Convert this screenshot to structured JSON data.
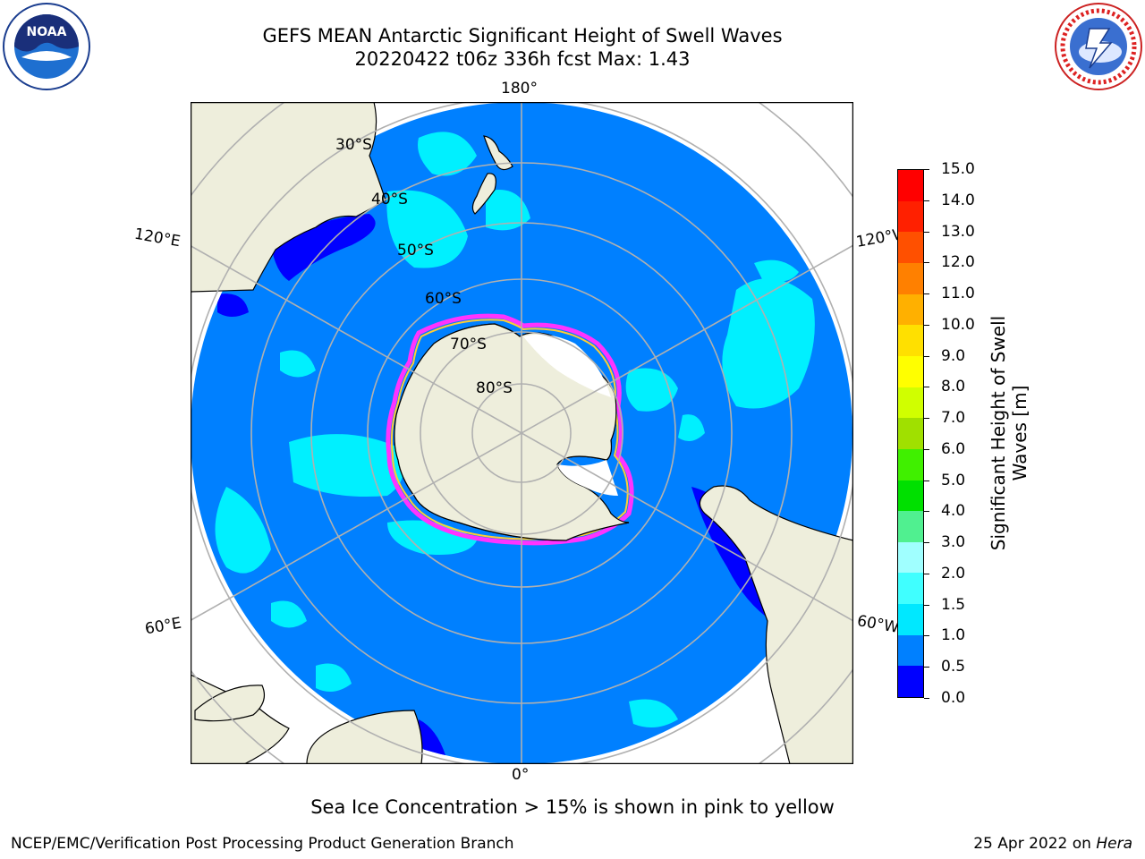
{
  "header": {
    "title_line1": "GEFS MEAN Antarctic Significant Height of Swell Waves",
    "title_line2": "20220422 t06z 336h fcst   Max: 1.43"
  },
  "logos": {
    "noaa": {
      "text": "NOAA",
      "ring_text": "NATIONAL OCEANIC AND ATMOSPHERIC ADMINISTRATION · U.S. DEPARTMENT OF COMMERCE"
    },
    "nws": {
      "ring_text": "NATIONAL WEATHER SERVICE"
    }
  },
  "map": {
    "projection": "south polar stereographic",
    "longitude_labels": {
      "top": "180°",
      "bottom": "0°",
      "upper_left": "120°E",
      "upper_right": "120°W",
      "lower_left": "60°E",
      "lower_right": "60°W"
    },
    "latitude_labels": [
      "30°S",
      "40°S",
      "50°S",
      "60°S",
      "70°S",
      "80°S"
    ],
    "colors": {
      "land": "#eeeedc",
      "ocean": "#0080ff",
      "grid": "#b0b0b0",
      "ice": "#ffffff",
      "ice_edge": [
        "#ff33ff",
        "#ffcc33"
      ]
    }
  },
  "colorbar": {
    "label": "Significant Height of Swell Waves [m]",
    "ticks": [
      "0.0",
      "0.5",
      "1.0",
      "1.5",
      "2.0",
      "3.0",
      "4.0",
      "5.0",
      "6.0",
      "7.0",
      "8.0",
      "9.0",
      "10.0",
      "11.0",
      "12.0",
      "13.0",
      "14.0",
      "15.0"
    ],
    "colors": [
      "#0000ff",
      "#0080ff",
      "#00e8ff",
      "#40ffff",
      "#a0ffff",
      "#50f090",
      "#00e000",
      "#40f000",
      "#a0e000",
      "#d0ff00",
      "#ffff00",
      "#ffe000",
      "#ffb000",
      "#ff8000",
      "#ff5000",
      "#ff2000",
      "#ff0000"
    ]
  },
  "note": "Sea Ice Concentration > 15% is shown in pink to yellow",
  "footer": {
    "left": "NCEP/EMC/Verification Post Processing Product Generation Branch",
    "right_prefix": "25 Apr 2022 on ",
    "right_host": "Hera"
  }
}
